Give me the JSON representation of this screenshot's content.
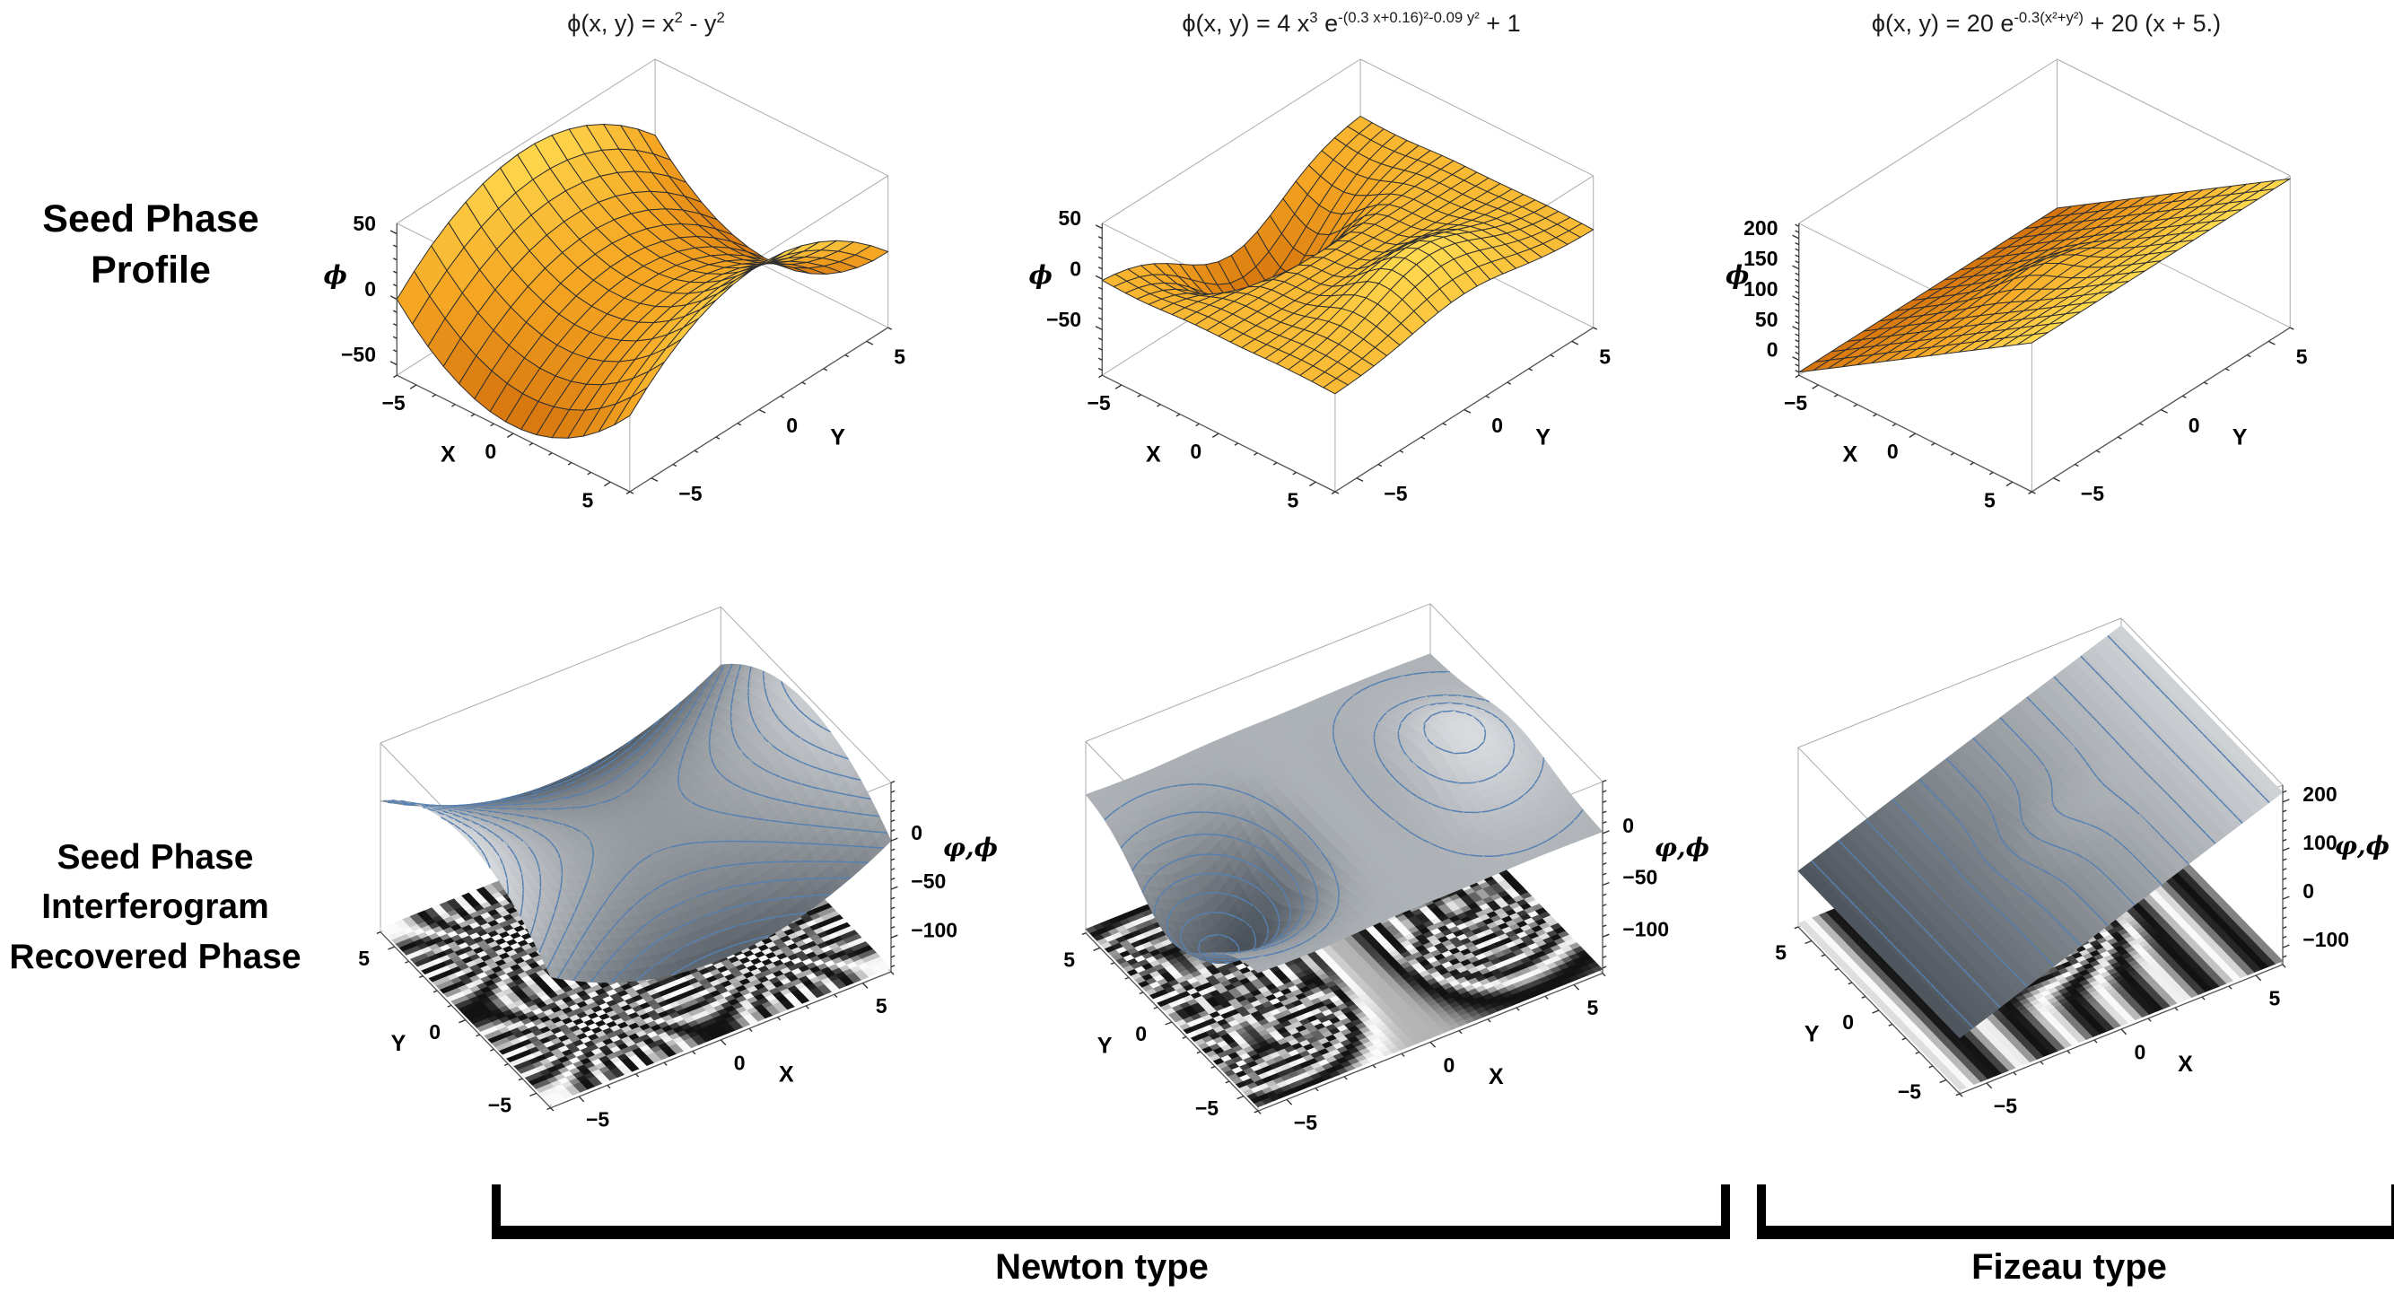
{
  "figure": {
    "row_labels": [
      {
        "lines": [
          "Seed Phase",
          "Profile"
        ]
      },
      {
        "lines": [
          "Seed Phase",
          "Interferogram",
          "Recovered Phase"
        ]
      }
    ],
    "group_labels": [
      {
        "label": "Newton type"
      },
      {
        "label": "Fizeau type"
      }
    ]
  },
  "chart_data": [
    {
      "id": "seed-phase-1",
      "type": "surface3d",
      "row": "Seed Phase Profile",
      "group": "Newton type",
      "title": "ϕ(x, y) = x^{2} - y^{2}",
      "formula_plain": "phi(x,y) = x^2 - y^2",
      "fn": "saddle",
      "domain": [
        -6,
        6
      ],
      "zrange": [
        -58,
        58
      ],
      "xlabel": "X",
      "ylabel": "Y",
      "zlabel": "ϕ",
      "xticks": [
        -5,
        0,
        5
      ],
      "yticks": [
        5,
        0,
        -5
      ],
      "zticks": [
        50,
        0,
        -50
      ],
      "surface_palette": "orange",
      "mesh": true,
      "view": "front-left"
    },
    {
      "id": "seed-phase-2",
      "type": "surface3d",
      "row": "Seed Phase Profile",
      "group": "Newton type",
      "title": "ϕ(x, y) = 4 x^{3} e^{-(0.3 x+0.16)²-0.09 y²} + 1",
      "formula_plain": "phi(x,y) = 4 x^3 exp(-(0.3x+0.16)^2 - 0.09 y^2) + 1",
      "fn": "gauss_cubic",
      "domain": [
        -6,
        6
      ],
      "zrange": [
        -95,
        55
      ],
      "xlabel": "X",
      "ylabel": "Y",
      "zlabel": "ϕ",
      "xticks": [
        -5,
        0,
        5
      ],
      "yticks": [
        5,
        0,
        -5
      ],
      "zticks": [
        50,
        0,
        -50
      ],
      "surface_palette": "orange",
      "mesh": true,
      "view": "front-left"
    },
    {
      "id": "seed-phase-3",
      "type": "surface3d",
      "row": "Seed Phase Profile",
      "group": "Fizeau type",
      "title": "ϕ(x, y) = 20 e^{-0.3(x²+y²)} + 20 (x + 5.)",
      "formula_plain": "phi(x,y) = 20 exp(-0.3(x^2+y^2)) + 20 (x + 5.)",
      "fn": "tilt_gauss",
      "domain": [
        -6,
        6
      ],
      "zrange": [
        -25,
        225
      ],
      "xlabel": "X",
      "ylabel": "Y",
      "zlabel": "ϕ",
      "xticks": [
        -5,
        0,
        5
      ],
      "yticks": [
        5,
        0,
        -5
      ],
      "zticks": [
        200,
        150,
        100,
        50,
        0
      ],
      "surface_palette": "orange",
      "mesh": true,
      "view": "front-left"
    },
    {
      "id": "recovered-1",
      "type": "surface3d+interferogram",
      "row": "Seed Phase Interferogram Recovered Phase",
      "group": "Newton type",
      "fn": "saddle",
      "domain": [
        -6,
        6
      ],
      "zrange": [
        -135,
        60
      ],
      "xlabel": "X",
      "ylabel": "Y",
      "zlabel": "φ,ϕ",
      "xticks": [
        -5,
        0,
        5
      ],
      "yticks": [
        5,
        0,
        -5
      ],
      "zticks": [
        0,
        -50,
        -100
      ],
      "surface_palette": "blue-gray",
      "contours": true,
      "interferogram": {
        "position": "box-bottom",
        "pattern": "cos-fringes",
        "period": 3
      },
      "view": "front-right"
    },
    {
      "id": "recovered-2",
      "type": "surface3d+interferogram",
      "row": "Seed Phase Interferogram Recovered Phase",
      "group": "Newton type",
      "fn": "gauss_cubic",
      "domain": [
        -6,
        6
      ],
      "zrange": [
        -135,
        50
      ],
      "xlabel": "X",
      "ylabel": "Y",
      "zlabel": "φ,ϕ",
      "xticks": [
        -5,
        0,
        5
      ],
      "yticks": [
        5,
        0,
        -5
      ],
      "zticks": [
        0,
        -50,
        -100
      ],
      "surface_palette": "blue-gray",
      "contours": true,
      "interferogram": {
        "position": "box-bottom",
        "pattern": "cos-fringes",
        "period": 6
      },
      "view": "front-right"
    },
    {
      "id": "recovered-3",
      "type": "surface3d+interferogram",
      "row": "Seed Phase Interferogram Recovered Phase",
      "group": "Fizeau type",
      "fn": "tilt_gauss",
      "domain": [
        -6,
        6
      ],
      "zrange": [
        -135,
        235
      ],
      "xlabel": "X",
      "ylabel": "Y",
      "zlabel": "φ,ϕ",
      "xticks": [
        -5,
        0,
        5
      ],
      "yticks": [
        5,
        0,
        -5
      ],
      "zticks": [
        200,
        100,
        0,
        -100
      ],
      "surface_palette": "blue-gray",
      "contours": true,
      "interferogram": {
        "position": "box-bottom",
        "pattern": "cos-fringes",
        "period": 6
      },
      "view": "front-right"
    }
  ]
}
